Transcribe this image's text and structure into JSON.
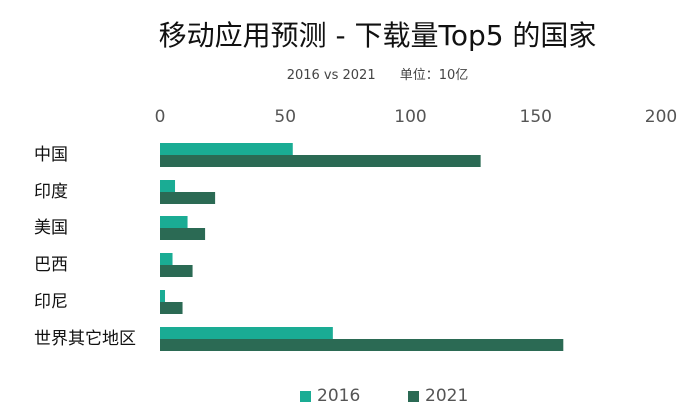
{
  "chart_data": {
    "type": "bar",
    "orientation": "horizontal",
    "title": "移动应用预测 - 下载量Top5 的国家",
    "subtitle_left": "2016 vs 2021",
    "subtitle_right": "单位：10亿",
    "categories": [
      "中国",
      "印度",
      "美国",
      "巴西",
      "印尼",
      "世界其它地区"
    ],
    "series": [
      {
        "name": "2016",
        "color": "#1aac94",
        "values": [
          53,
          6,
          11,
          5,
          2,
          69
        ]
      },
      {
        "name": "2021",
        "color": "#2b6a54",
        "values": [
          128,
          22,
          18,
          13,
          9,
          161
        ]
      }
    ],
    "xlim": [
      0,
      200
    ],
    "xticks": [
      "0",
      "50",
      "100",
      "150",
      "200"
    ],
    "axis_position": "top",
    "grid": false,
    "legend_position": "bottom"
  }
}
